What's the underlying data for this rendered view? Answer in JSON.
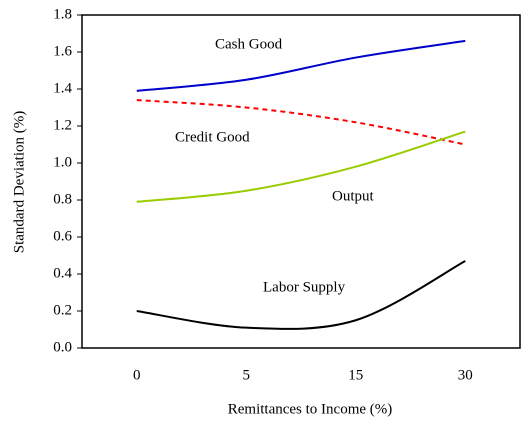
{
  "chart_data": {
    "type": "line",
    "x_label": "Remittances to Income (%)",
    "y_label": "Standard Deviation (%)",
    "categories": [
      "0",
      "5",
      "15",
      "30"
    ],
    "series": [
      {
        "name": "Cash Good",
        "color": "#0000cc",
        "dashed": false,
        "values": [
          1.39,
          1.45,
          1.57,
          1.66
        ]
      },
      {
        "name": "Credit Good",
        "color": "#ff0000",
        "dashed": true,
        "values": [
          1.34,
          1.3,
          1.22,
          1.1
        ]
      },
      {
        "name": "Output",
        "color": "#99cc00",
        "dashed": false,
        "values": [
          0.79,
          0.85,
          0.98,
          1.17
        ]
      },
      {
        "name": "Labor Supply",
        "color": "#000000",
        "dashed": false,
        "values": [
          0.2,
          0.11,
          0.15,
          0.47
        ]
      }
    ],
    "ylim": [
      0,
      1.8
    ],
    "yticks": [
      {
        "value": 0,
        "label": "0.0"
      },
      0.2,
      0.4,
      0.6,
      0.8,
      {
        "value": 1,
        "label": "1.0"
      },
      1.2,
      1.4,
      1.6,
      1.8
    ],
    "grid": false
  }
}
